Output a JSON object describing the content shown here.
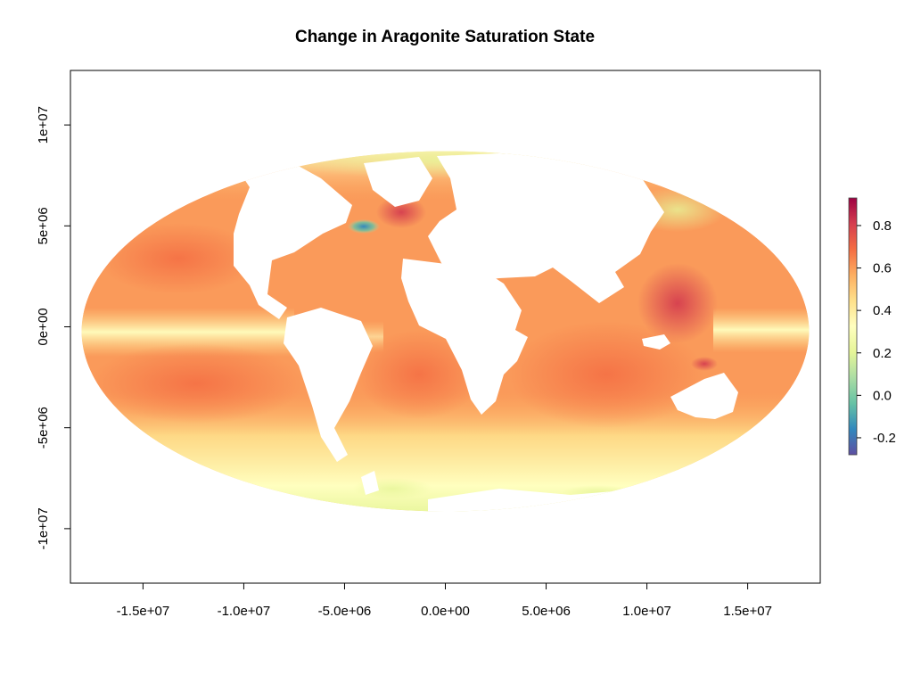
{
  "chart_data": {
    "type": "heatmap",
    "title": "Change in Aragonite Saturation State",
    "projection": "mollweide",
    "xlabel": "",
    "ylabel": "",
    "x_ticks": [
      {
        "value": -15000000,
        "label": "-1.5e+07"
      },
      {
        "value": -10000000,
        "label": "-1.0e+07"
      },
      {
        "value": -5000000,
        "label": "-5.0e+06"
      },
      {
        "value": 0,
        "label": "0.0e+00"
      },
      {
        "value": 5000000,
        "label": "5.0e+06"
      },
      {
        "value": 10000000,
        "label": "1.0e+07"
      },
      {
        "value": 15000000,
        "label": "1.5e+07"
      }
    ],
    "y_ticks": [
      {
        "value": 10000000,
        "label": "1e+07"
      },
      {
        "value": 5000000,
        "label": "5e+06"
      },
      {
        "value": 0,
        "label": "0e+00"
      },
      {
        "value": -5000000,
        "label": "-5e+06"
      },
      {
        "value": -10000000,
        "label": "-1e+07"
      }
    ],
    "xlim": [
      -18600000,
      18600000
    ],
    "ylim": [
      -12700000,
      12700000
    ],
    "colorbar": {
      "range": [
        -0.28,
        0.93
      ],
      "ticks": [
        {
          "value": 0.8,
          "label": "0.8"
        },
        {
          "value": 0.6,
          "label": "0.6"
        },
        {
          "value": 0.4,
          "label": "0.4"
        },
        {
          "value": 0.2,
          "label": "0.2"
        },
        {
          "value": 0.0,
          "label": "0.0"
        },
        {
          "value": -0.2,
          "label": "-0.2"
        }
      ],
      "palette": [
        "#5e4fa2",
        "#3288bd",
        "#66c2a5",
        "#abdda4",
        "#e6f598",
        "#ffffbf",
        "#fee08b",
        "#fdae61",
        "#f46d43",
        "#d53e4f",
        "#9e0142"
      ],
      "placement": "right"
    },
    "land_color": "#ffffff",
    "grid": false
  }
}
